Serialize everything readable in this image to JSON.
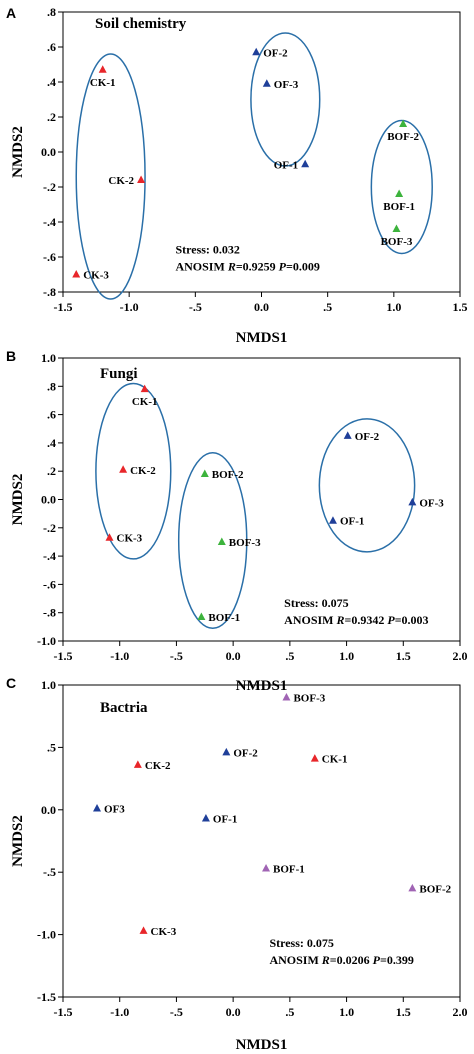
{
  "colors": {
    "red": "#e8262a",
    "blue": "#1f3f99",
    "green": "#3cb33c",
    "purple": "#a064b4",
    "ellipse": "#2a6fa8"
  },
  "chart_data": [
    {
      "type": "scatter",
      "panel": "A",
      "title": "Soil chemistry",
      "xlabel": "NMDS1",
      "ylabel": "NMDS2",
      "xlim": [
        -1.5,
        1.5
      ],
      "ylim": [
        -0.8,
        0.8
      ],
      "xticks": [
        {
          "v": -1.5,
          "label": "-1.5"
        },
        {
          "v": -1.0,
          "label": "-1.0"
        },
        {
          "v": -0.5,
          "label": "-.5"
        },
        {
          "v": 0.0,
          "label": "0.0"
        },
        {
          "v": 0.5,
          "label": ".5"
        },
        {
          "v": 1.0,
          "label": "1.0"
        },
        {
          "v": 1.5,
          "label": "1.5"
        }
      ],
      "yticks": [
        {
          "v": 0.8,
          "label": ".8"
        },
        {
          "v": 0.6,
          "label": ".6"
        },
        {
          "v": 0.4,
          "label": ".4"
        },
        {
          "v": 0.2,
          "label": ".2"
        },
        {
          "v": 0.0,
          "label": "0.0"
        },
        {
          "v": -0.2,
          "label": "-.2"
        },
        {
          "v": -0.4,
          "label": "-.4"
        },
        {
          "v": -0.6,
          "label": "-.6"
        },
        {
          "v": -0.8,
          "label": "-.8"
        }
      ],
      "points": [
        {
          "label": "CK-1",
          "x": -1.2,
          "y": 0.47,
          "color": "red",
          "label_side": "below"
        },
        {
          "label": "CK-2",
          "x": -0.91,
          "y": -0.16,
          "color": "red",
          "label_side": "left"
        },
        {
          "label": "CK-3",
          "x": -1.4,
          "y": -0.7,
          "color": "red",
          "label_side": "right"
        },
        {
          "label": "OF-2",
          "x": -0.04,
          "y": 0.57,
          "color": "blue",
          "label_side": "right"
        },
        {
          "label": "OF-3",
          "x": 0.04,
          "y": 0.39,
          "color": "blue",
          "label_side": "right"
        },
        {
          "label": "OF-1",
          "x": 0.33,
          "y": -0.07,
          "color": "blue",
          "label_side": "left"
        },
        {
          "label": "BOF-2",
          "x": 1.07,
          "y": 0.16,
          "color": "green",
          "label_side": "below"
        },
        {
          "label": "BOF-1",
          "x": 1.04,
          "y": -0.24,
          "color": "green",
          "label_side": "below"
        },
        {
          "label": "BOF-3",
          "x": 1.02,
          "y": -0.44,
          "color": "green",
          "label_side": "below"
        }
      ],
      "ellipses": [
        {
          "cx": -1.14,
          "cy": -0.14,
          "rx": 0.26,
          "ry": 0.7
        },
        {
          "cx": 0.18,
          "cy": 0.3,
          "rx": 0.26,
          "ry": 0.38
        },
        {
          "cx": 1.06,
          "cy": -0.2,
          "rx": 0.23,
          "ry": 0.38
        }
      ],
      "stress": "Stress: 0.032",
      "anosim": {
        "prefix": "ANOSIM ",
        "r_sym": "R",
        "r_val": "=0.9259 ",
        "p_sym": "P",
        "p_val": "=0.009"
      },
      "annotation_pos": {
        "x": -0.65,
        "y": -0.58
      }
    },
    {
      "type": "scatter",
      "panel": "B",
      "title": "Fungi",
      "xlabel": "NMDS1",
      "ylabel": "NMDS2",
      "xlim": [
        -1.5,
        2.0
      ],
      "ylim": [
        -1.0,
        1.0
      ],
      "xticks": [
        {
          "v": -1.5,
          "label": "-1.5"
        },
        {
          "v": -1.0,
          "label": "-1.0"
        },
        {
          "v": -0.5,
          "label": "-.5"
        },
        {
          "v": 0.0,
          "label": "0.0"
        },
        {
          "v": 0.5,
          "label": ".5"
        },
        {
          "v": 1.0,
          "label": "1.0"
        },
        {
          "v": 1.5,
          "label": "1.5"
        },
        {
          "v": 2.0,
          "label": "2.0"
        }
      ],
      "yticks": [
        {
          "v": 1.0,
          "label": "1.0"
        },
        {
          "v": 0.8,
          "label": ".8"
        },
        {
          "v": 0.6,
          "label": ".6"
        },
        {
          "v": 0.4,
          "label": ".4"
        },
        {
          "v": 0.2,
          "label": ".2"
        },
        {
          "v": 0.0,
          "label": "0.0"
        },
        {
          "v": -0.2,
          "label": "-.2"
        },
        {
          "v": -0.4,
          "label": "-.4"
        },
        {
          "v": -0.6,
          "label": "-.6"
        },
        {
          "v": -0.8,
          "label": "-.8"
        },
        {
          "v": -1.0,
          "label": "-1.0"
        }
      ],
      "points": [
        {
          "label": "CK-1",
          "x": -0.78,
          "y": 0.78,
          "color": "red",
          "label_side": "below"
        },
        {
          "label": "CK-2",
          "x": -0.97,
          "y": 0.21,
          "color": "red",
          "label_side": "right"
        },
        {
          "label": "CK-3",
          "x": -1.09,
          "y": -0.27,
          "color": "red",
          "label_side": "right"
        },
        {
          "label": "BOF-2",
          "x": -0.25,
          "y": 0.18,
          "color": "green",
          "label_side": "right"
        },
        {
          "label": "BOF-3",
          "x": -0.1,
          "y": -0.3,
          "color": "green",
          "label_side": "right"
        },
        {
          "label": "BOF-1",
          "x": -0.28,
          "y": -0.83,
          "color": "green",
          "label_side": "right"
        },
        {
          "label": "OF-2",
          "x": 1.01,
          "y": 0.45,
          "color": "blue",
          "label_side": "right"
        },
        {
          "label": "OF-1",
          "x": 0.88,
          "y": -0.15,
          "color": "blue",
          "label_side": "right"
        },
        {
          "label": "OF-3",
          "x": 1.58,
          "y": -0.02,
          "color": "blue",
          "label_side": "right"
        }
      ],
      "ellipses": [
        {
          "cx": -0.88,
          "cy": 0.2,
          "rx": 0.33,
          "ry": 0.62
        },
        {
          "cx": -0.18,
          "cy": -0.29,
          "rx": 0.3,
          "ry": 0.62
        },
        {
          "cx": 1.18,
          "cy": 0.1,
          "rx": 0.42,
          "ry": 0.47
        }
      ],
      "stress": "Stress: 0.075",
      "anosim": {
        "prefix": "ANOSIM ",
        "r_sym": "R",
        "r_val": "=0.9342 ",
        "p_sym": "P",
        "p_val": "=0.003"
      },
      "annotation_pos": {
        "x": 0.45,
        "y": -0.76
      }
    },
    {
      "type": "scatter",
      "panel": "C",
      "title": "Bactria",
      "xlabel": "NMDS1",
      "ylabel": "NMDS2",
      "xlim": [
        -1.5,
        2.0
      ],
      "ylim": [
        -1.5,
        1.0
      ],
      "xticks": [
        {
          "v": -1.5,
          "label": "-1.5"
        },
        {
          "v": -1.0,
          "label": "-1.0"
        },
        {
          "v": -0.5,
          "label": "-.5"
        },
        {
          "v": 0.0,
          "label": "0.0"
        },
        {
          "v": 0.5,
          "label": ".5"
        },
        {
          "v": 1.0,
          "label": "1.0"
        },
        {
          "v": 1.5,
          "label": "1.5"
        },
        {
          "v": 2.0,
          "label": "2.0"
        }
      ],
      "yticks": [
        {
          "v": 1.0,
          "label": "1.0"
        },
        {
          "v": 0.5,
          "label": ".5"
        },
        {
          "v": 0.0,
          "label": "0.0"
        },
        {
          "v": -0.5,
          "label": "-.5"
        },
        {
          "v": -1.0,
          "label": "-1.0"
        },
        {
          "v": -1.5,
          "label": "-1.5"
        }
      ],
      "points": [
        {
          "label": "BOF-3",
          "x": 0.47,
          "y": 0.9,
          "color": "purple",
          "label_side": "right"
        },
        {
          "label": "BOF-1",
          "x": 0.29,
          "y": -0.47,
          "color": "purple",
          "label_side": "right"
        },
        {
          "label": "BOF-2",
          "x": 1.58,
          "y": -0.63,
          "color": "purple",
          "label_side": "right"
        },
        {
          "label": "CK-1",
          "x": 0.72,
          "y": 0.41,
          "color": "red",
          "label_side": "right"
        },
        {
          "label": "CK-2",
          "x": -0.84,
          "y": 0.36,
          "color": "red",
          "label_side": "right"
        },
        {
          "label": "CK-3",
          "x": -0.79,
          "y": -0.97,
          "color": "red",
          "label_side": "right"
        },
        {
          "label": "OF-2",
          "x": -0.06,
          "y": 0.46,
          "color": "blue",
          "label_side": "right"
        },
        {
          "label": "OF-1",
          "x": -0.24,
          "y": -0.07,
          "color": "blue",
          "label_side": "right"
        },
        {
          "label": "OF3",
          "x": -1.2,
          "y": 0.01,
          "color": "blue",
          "label_side": "right"
        }
      ],
      "ellipses": [],
      "stress": "Stress: 0.075",
      "anosim": {
        "prefix": "ANOSIM ",
        "r_sym": "R",
        "r_val": "=0.0206 ",
        "p_sym": "P",
        "p_val": "=0.399"
      },
      "annotation_pos": {
        "x": 0.32,
        "y": -1.1
      }
    }
  ]
}
